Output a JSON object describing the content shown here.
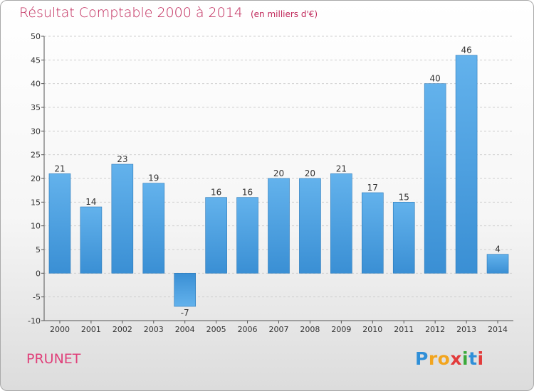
{
  "chart_data": {
    "type": "bar",
    "title": "Résultat Comptable 2000 à 2014",
    "subtitle": "(en milliers d'€)",
    "xlabel": "",
    "ylabel": "",
    "categories": [
      "2000",
      "2001",
      "2002",
      "2003",
      "2004",
      "2005",
      "2006",
      "2007",
      "2008",
      "2009",
      "2010",
      "2011",
      "2012",
      "2013",
      "2014"
    ],
    "values": [
      21,
      14,
      23,
      19,
      -7,
      16,
      16,
      20,
      20,
      21,
      17,
      15,
      40,
      46,
      4
    ],
    "ylim": [
      -10,
      50
    ],
    "yticks": [
      -10,
      -5,
      0,
      5,
      10,
      15,
      20,
      25,
      30,
      35,
      40,
      45,
      50
    ],
    "grid": true,
    "bar_color": "#3a8fd4",
    "bar_color_light": "#63b2ec"
  },
  "commune": "PRUNET",
  "logo": {
    "letters": [
      "P",
      "r",
      "o",
      "x",
      "i",
      "t",
      "i"
    ],
    "colors": [
      "#2f8fd8",
      "#f2a51f",
      "#f2a51f",
      "#e23b3b",
      "#3aa93a",
      "#2f8fd8",
      "#e23b3b"
    ]
  },
  "title_color": "#c0285a"
}
